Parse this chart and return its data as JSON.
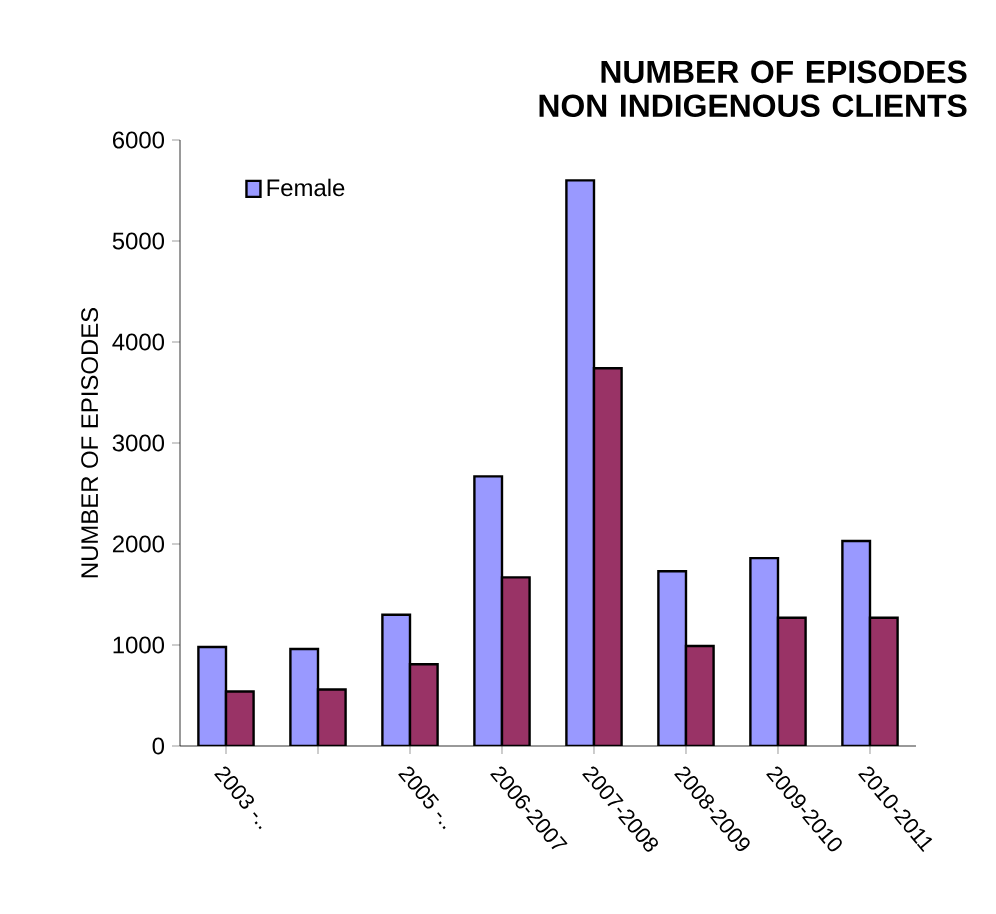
{
  "chart_data": {
    "type": "bar",
    "title": "NUMBER OF EPISODES NON INDIGENOUS CLIENTS",
    "ylabel": "NUMBER OF EPISODES",
    "categories": [
      "2003 -..",
      null,
      "2005 -..",
      "2006-2007",
      "2007-2008",
      "2008-2009",
      "2009-2010",
      "2010-2011"
    ],
    "series": [
      {
        "name": "Female",
        "color": "#9999ff",
        "values": [
          980,
          960,
          1300,
          2670,
          5600,
          1730,
          1860,
          2030
        ]
      },
      {
        "color": "#993366",
        "values": [
          540,
          560,
          810,
          1670,
          3740,
          990,
          1270,
          1270
        ]
      }
    ],
    "ylim": [
      0,
      6000
    ],
    "yticks": [
      0,
      1000,
      2000,
      3000,
      4000,
      5000,
      6000
    ],
    "legend": "top left",
    "grid": false
  }
}
